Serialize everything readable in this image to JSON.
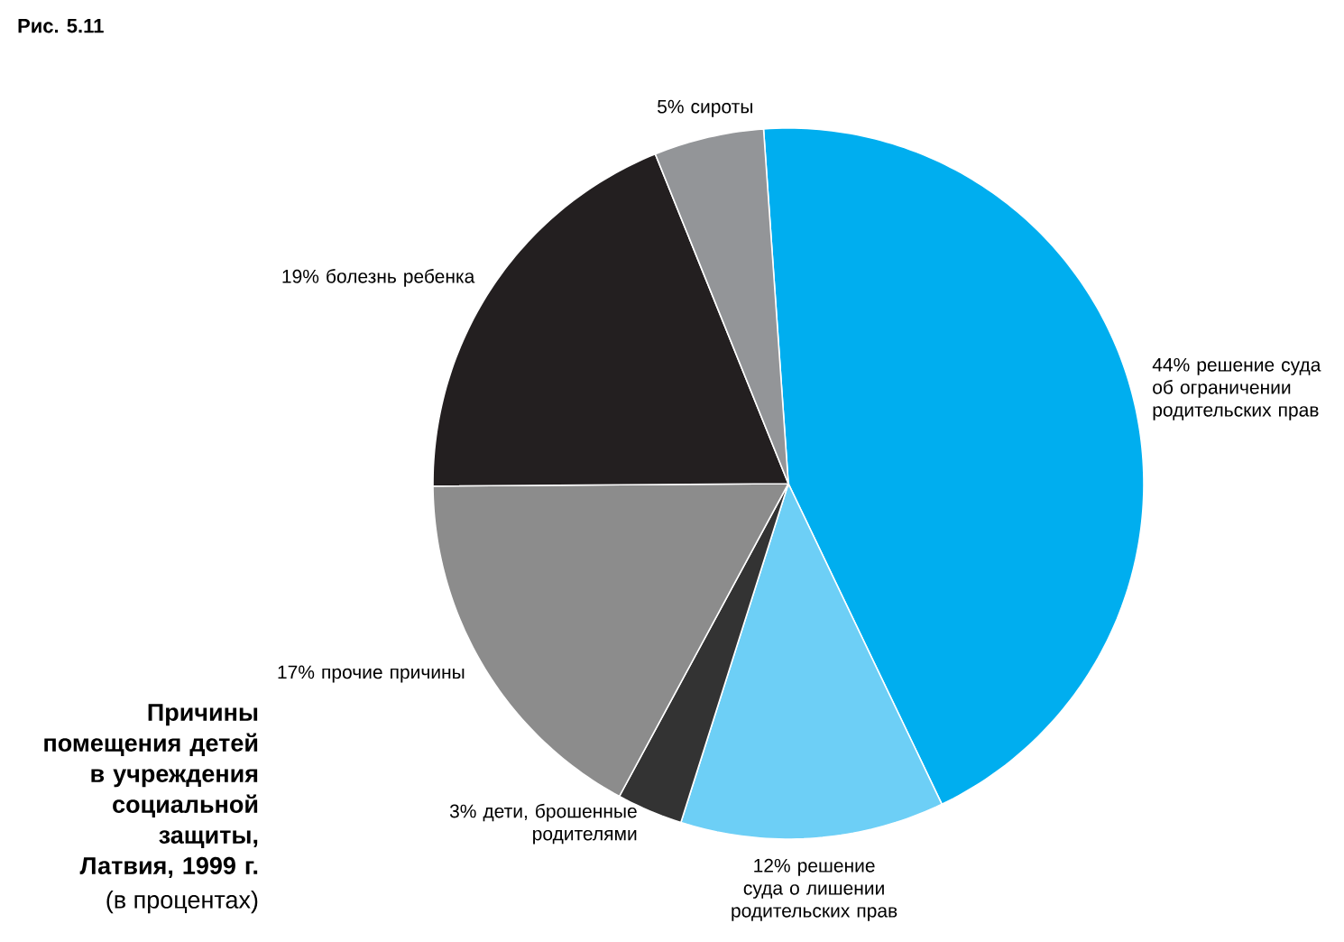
{
  "chart_data": {
    "type": "pie",
    "title": "Причины помещения детей в учреждения социальной защиты, Латвия, 1999 г.",
    "subtitle": "(в процентах)",
    "annotations": [
      "Рис. 5.11"
    ],
    "categories": [
      "решение суда об ограничении родительских прав",
      "решение суда о лишении родительских прав",
      "дети, брошенные родителями",
      "прочие причины",
      "болезнь ребенка",
      "сироты"
    ],
    "values": [
      44,
      12,
      3,
      17,
      19,
      5
    ],
    "value_labels": [
      "44%",
      "12%",
      "3%",
      "17%",
      "19%",
      "5%"
    ],
    "colors": [
      "#00aeef",
      "#6dcff6",
      "#333333",
      "#8c8c8c",
      "#231f20",
      "#939598"
    ]
  }
}
